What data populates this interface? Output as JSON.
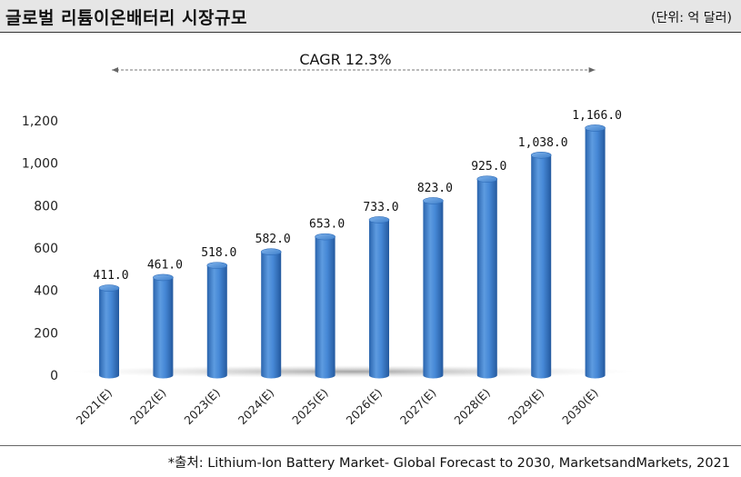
{
  "header": {
    "title": "글로벌 리튬이온배터리 시장규모",
    "unit": "(단위: 억 달러)"
  },
  "chart_data": {
    "type": "bar",
    "categories": [
      "2021(E)",
      "2022(E)",
      "2023(E)",
      "2024(E)",
      "2025(E)",
      "2026(E)",
      "2027(E)",
      "2028(E)",
      "2029(E)",
      "2030(E)"
    ],
    "values": [
      411.0,
      461.0,
      518.0,
      582.0,
      653.0,
      733.0,
      823.0,
      925.0,
      1038.0,
      1166.0
    ],
    "value_labels": [
      "411.0",
      "461.0",
      "518.0",
      "582.0",
      "653.0",
      "733.0",
      "823.0",
      "925.0",
      "1,038.0",
      "1,166.0"
    ],
    "y_ticks": [
      0,
      200,
      400,
      600,
      800,
      1000,
      1200
    ],
    "y_tick_labels": [
      "0",
      "200",
      "400",
      "600",
      "800",
      "1,000",
      "1,200"
    ],
    "ylim": [
      0,
      1200
    ],
    "annotation": "CAGR 12.3%",
    "bar_color": "#3e82cf"
  },
  "footer": {
    "source": "*출처: Lithium-Ion Battery Market- Global Forecast to 2030, MarketsandMarkets, 2021"
  }
}
